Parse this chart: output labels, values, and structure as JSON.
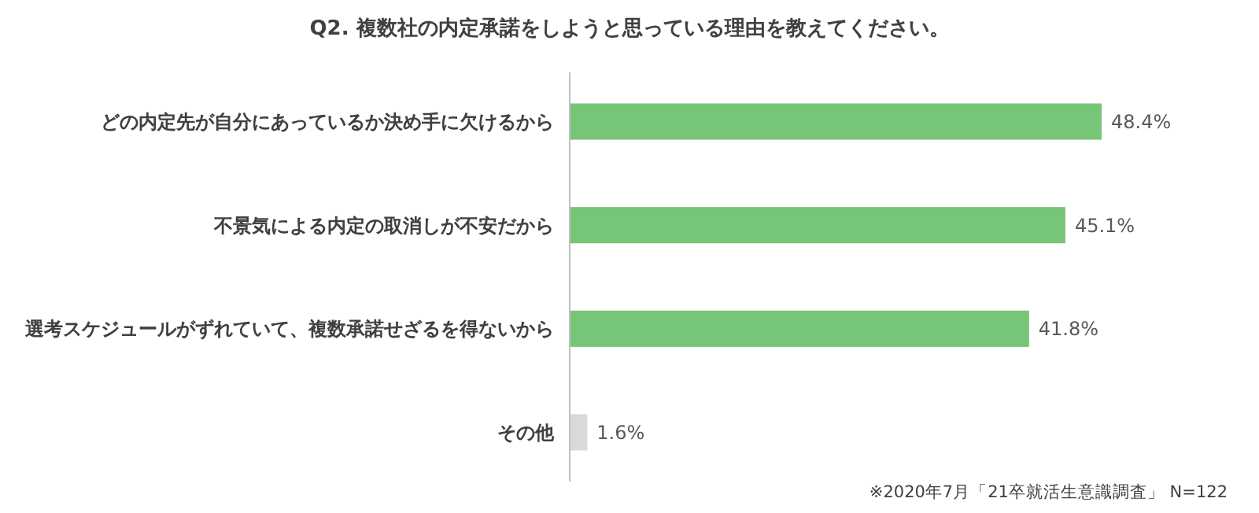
{
  "chart_data": {
    "type": "bar",
    "orientation": "horizontal",
    "title": "Q2. 複数社の内定承諾をしようと思っている理由を教えてください。",
    "categories": [
      "どの内定先が自分にあっているか決め手に欠けるから",
      "不景気による内定の取消しが不安だから",
      "選考スケジュールがずれていて、複数承諾せざるを得ないから",
      "その他"
    ],
    "values": [
      48.4,
      45.1,
      41.8,
      1.6
    ],
    "colors": [
      "#77c576",
      "#77c576",
      "#77c576",
      "#d9d9d9"
    ],
    "value_labels": [
      "48.4%",
      "45.1%",
      "41.8%",
      "1.6%"
    ],
    "annotations": [
      "※2020年7月「21卒就活生意識調査」 N=122"
    ]
  }
}
